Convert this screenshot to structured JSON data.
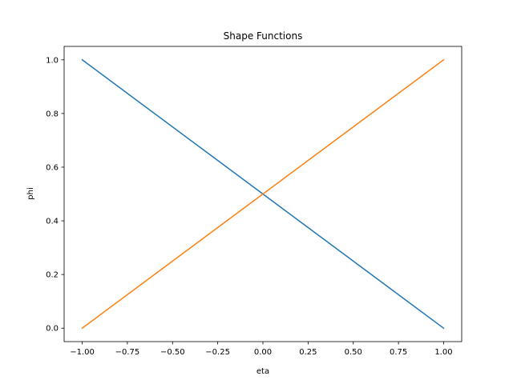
{
  "chart_data": {
    "type": "line",
    "title": "Shape Functions",
    "xlabel": "eta",
    "ylabel": "phi",
    "xlim": [
      -1.1,
      1.1
    ],
    "ylim": [
      -0.05,
      1.05
    ],
    "grid": false,
    "legend": "none",
    "xticks": [
      -1.0,
      -0.75,
      -0.5,
      -0.25,
      0.0,
      0.25,
      0.5,
      0.75,
      1.0
    ],
    "xtick_labels": [
      "−1.00",
      "−0.75",
      "−0.50",
      "−0.25",
      "0.00",
      "0.25",
      "0.50",
      "0.75",
      "1.00"
    ],
    "yticks": [
      0.0,
      0.2,
      0.4,
      0.6,
      0.8,
      1.0
    ],
    "ytick_labels": [
      "0.0",
      "0.2",
      "0.4",
      "0.6",
      "0.8",
      "1.0"
    ],
    "series": [
      {
        "color": "#1f77b4",
        "x": [
          -1.0,
          1.0
        ],
        "y": [
          1.0,
          0.0
        ]
      },
      {
        "color": "#ff7f0e",
        "x": [
          -1.0,
          1.0
        ],
        "y": [
          0.0,
          1.0
        ]
      }
    ]
  }
}
